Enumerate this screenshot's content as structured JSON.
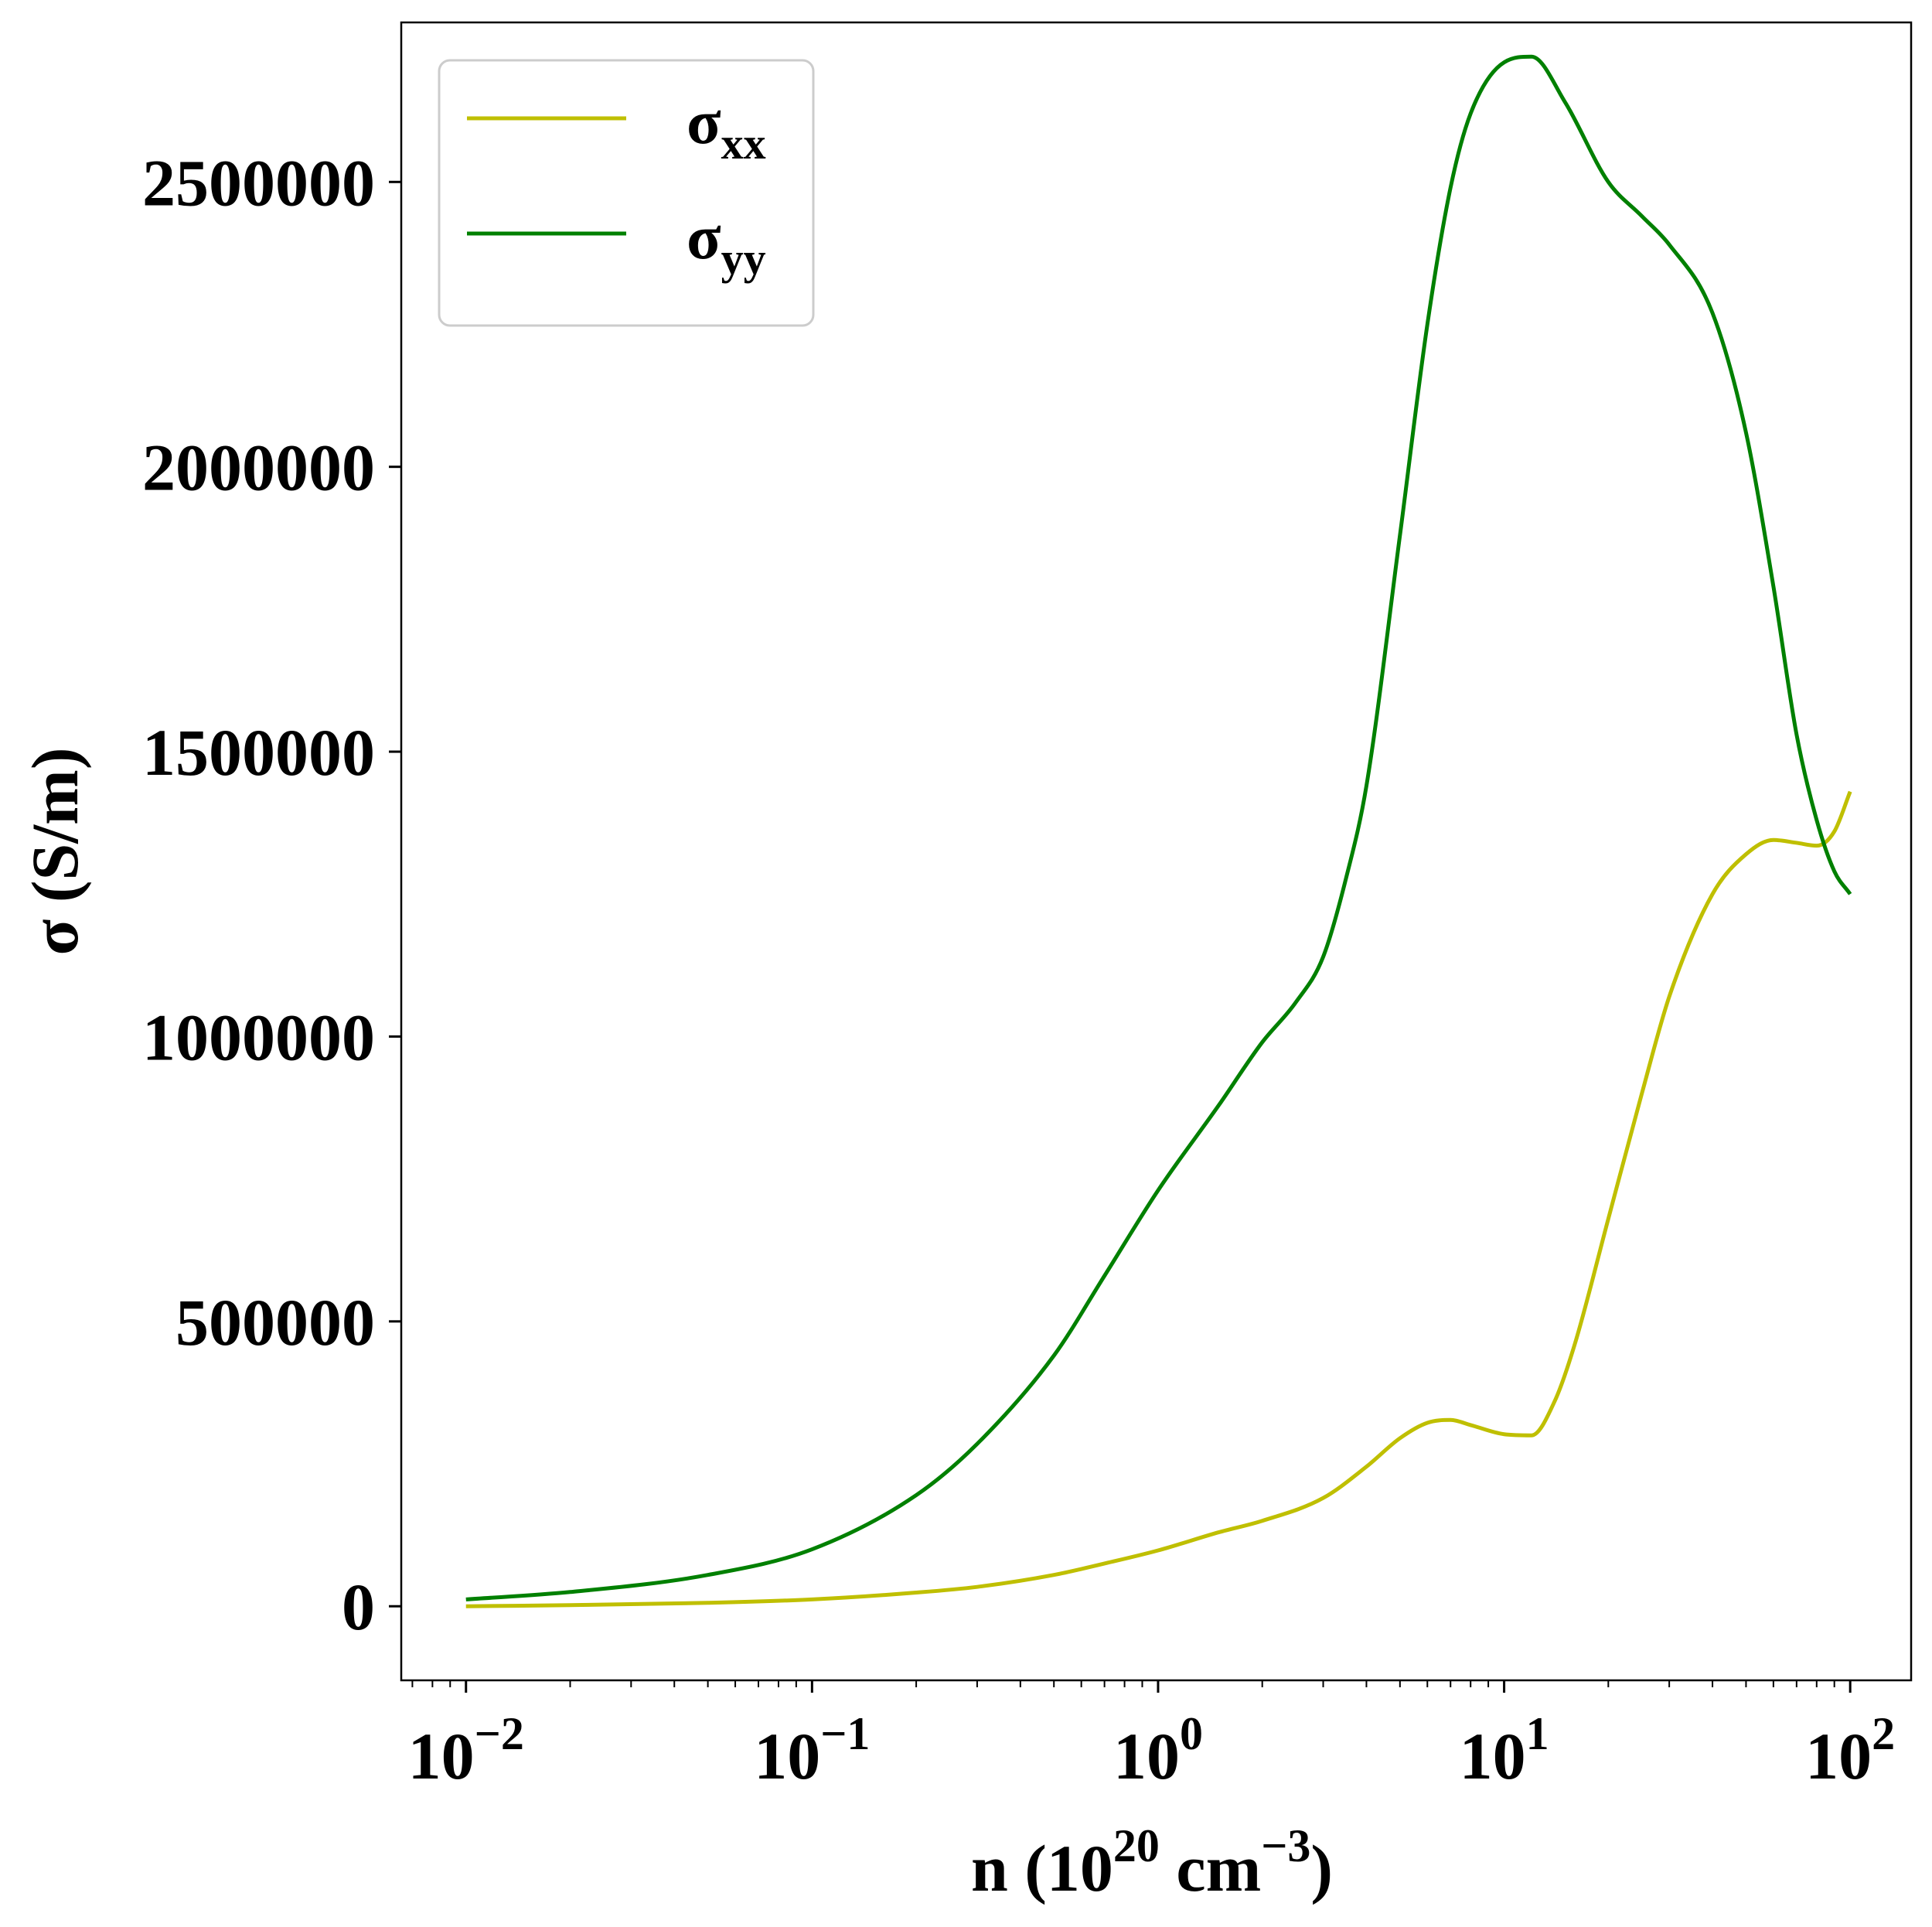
{
  "chart_data": {
    "type": "line",
    "xscale": "log",
    "xlim": [
      0.0065,
      150
    ],
    "ylim": [
      -130000,
      2780000
    ],
    "xlabel": {
      "base": "n (10",
      "sup1": "20",
      "mid": " cm",
      "sup2": "−3",
      "end": ")"
    },
    "ylabel": "σ (S/m)",
    "x_ticks": [
      {
        "value": 0.01,
        "base": "10",
        "exp": "−2"
      },
      {
        "value": 0.1,
        "base": "10",
        "exp": "−1"
      },
      {
        "value": 1,
        "base": "10",
        "exp": "0"
      },
      {
        "value": 10,
        "base": "10",
        "exp": "1"
      },
      {
        "value": 100,
        "base": "10",
        "exp": "2"
      }
    ],
    "y_ticks": [
      {
        "value": 0,
        "label": "0"
      },
      {
        "value": 500000,
        "label": "500000"
      },
      {
        "value": 1000000,
        "label": "1000000"
      },
      {
        "value": 1500000,
        "label": "1500000"
      },
      {
        "value": 2000000,
        "label": "2000000"
      },
      {
        "value": 2500000,
        "label": "2500000"
      }
    ],
    "grid": false,
    "legend_position": "top-left",
    "series": [
      {
        "name": "σxx",
        "legend": {
          "main": "σ",
          "sub": "xx"
        },
        "color": "#bfbf00",
        "x": [
          0.01,
          0.02,
          0.05,
          0.1,
          0.2,
          0.3,
          0.5,
          0.7,
          1.0,
          1.5,
          2.0,
          3.0,
          4.0,
          5.0,
          6.0,
          7.0,
          8.0,
          10.0,
          12.0,
          14.0,
          16.0,
          20.0,
          25.0,
          30.0,
          40.0,
          50.0,
          60.0,
          70.0,
          80.0,
          90.0,
          100.0
        ],
        "y": [
          0,
          2000,
          6000,
          12000,
          24000,
          34000,
          55000,
          75000,
          98000,
          130000,
          150000,
          190000,
          245000,
          295000,
          322000,
          327000,
          318000,
          302000,
          300000,
          360000,
          460000,
          680000,
          900000,
          1070000,
          1250000,
          1320000,
          1345000,
          1340000,
          1335000,
          1360000,
          1430000
        ]
      },
      {
        "name": "σyy",
        "legend": {
          "main": "σ",
          "sub": "yy"
        },
        "color": "#008000",
        "x": [
          0.01,
          0.02,
          0.05,
          0.1,
          0.2,
          0.3,
          0.5,
          0.7,
          1.0,
          1.5,
          2.0,
          2.5,
          3.0,
          3.5,
          4.0,
          5.0,
          6.0,
          7.0,
          8.0,
          10.0,
          12.0,
          15.0,
          20.0,
          25.0,
          30.0,
          40.0,
          50.0,
          60.0,
          70.0,
          80.0,
          90.0,
          100.0
        ],
        "y": [
          12000,
          25000,
          55000,
          100000,
          195000,
          285000,
          440000,
          580000,
          730000,
          880000,
          990000,
          1060000,
          1140000,
          1280000,
          1440000,
          1880000,
          2250000,
          2490000,
          2620000,
          2710000,
          2720000,
          2640000,
          2500000,
          2440000,
          2390000,
          2270000,
          2060000,
          1790000,
          1530000,
          1380000,
          1290000,
          1250000
        ]
      }
    ]
  }
}
